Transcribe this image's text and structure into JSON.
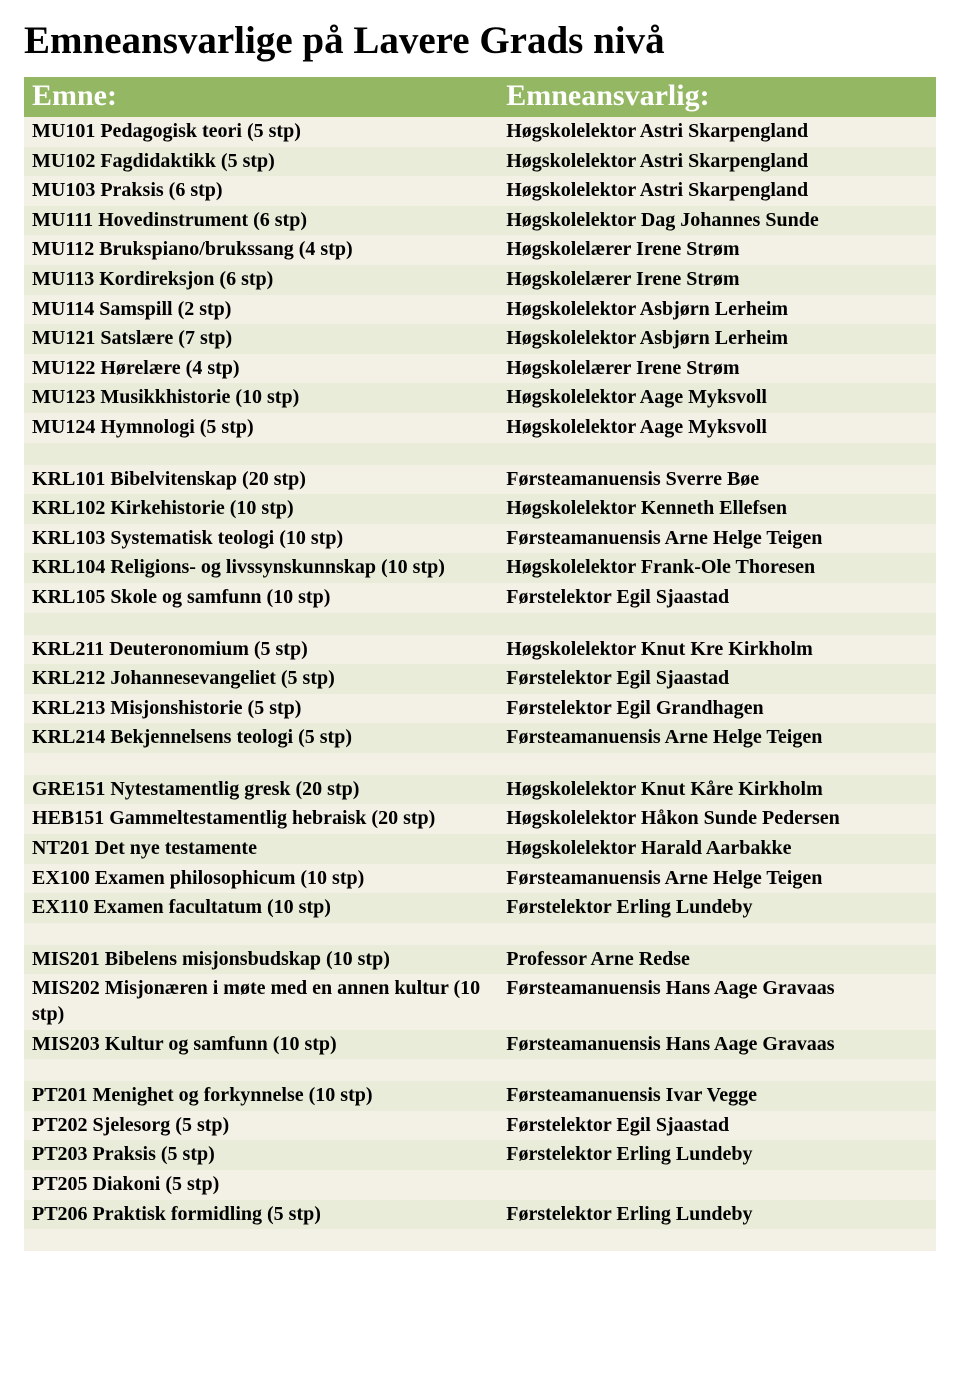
{
  "title": "Emneansvarlige på Lavere Grads nivå",
  "header": {
    "col1": "Emne:",
    "col2": "Emneansvarlig:"
  },
  "colors": {
    "header_bg": "#93b762",
    "header_fg": "#ffffff",
    "row_odd": "#f3f1e6",
    "row_even": "#e8ecd9"
  },
  "rows": [
    {
      "c1": "MU101 Pedagogisk teori (5 stp)",
      "c2": "Høgskolelektor Astri Skarpengland"
    },
    {
      "c1": "MU102 Fagdidaktikk (5 stp)",
      "c2": "Høgskolelektor Astri Skarpengland"
    },
    {
      "c1": "MU103 Praksis (6 stp)",
      "c2": "Høgskolelektor Astri Skarpengland"
    },
    {
      "c1": "MU111 Hovedinstrument (6 stp)",
      "c2": "Høgskolelektor Dag Johannes Sunde"
    },
    {
      "c1": "MU112 Brukspiano/brukssang (4 stp)",
      "c2": "Høgskolelærer Irene Strøm"
    },
    {
      "c1": "MU113 Kordireksjon (6 stp)",
      "c2": "Høgskolelærer Irene Strøm"
    },
    {
      "c1": "MU114 Samspill (2 stp)",
      "c2": "Høgskolelektor Asbjørn Lerheim"
    },
    {
      "c1": "MU121 Satslære (7 stp)",
      "c2": "Høgskolelektor Asbjørn Lerheim"
    },
    {
      "c1": "MU122 Hørelære (4 stp)",
      "c2": "Høgskolelærer Irene Strøm"
    },
    {
      "c1": "MU123 Musikkhistorie (10 stp)",
      "c2": "Høgskolelektor Aage Myksvoll"
    },
    {
      "c1": "MU124 Hymnologi (5 stp)",
      "c2": "Høgskolelektor Aage Myksvoll"
    },
    {
      "blank": true
    },
    {
      "c1": "KRL101 Bibelvitenskap (20 stp)",
      "c2": "Førsteamanuensis Sverre Bøe"
    },
    {
      "c1": "KRL102 Kirkehistorie (10 stp)",
      "c2": "Høgskolelektor Kenneth Ellefsen"
    },
    {
      "c1": "KRL103 Systematisk teologi (10 stp)",
      "c2": "Førsteamanuensis Arne Helge Teigen"
    },
    {
      "c1": "KRL104 Religions- og livssynskunnskap (10 stp)",
      "c2": "Høgskolelektor Frank-Ole Thoresen"
    },
    {
      "c1": "KRL105 Skole og samfunn (10 stp)",
      "c2": "Førstelektor Egil Sjaastad"
    },
    {
      "blank": true
    },
    {
      "c1": "KRL211 Deuteronomium (5 stp)",
      "c2": "Høgskolelektor Knut Kre Kirkholm"
    },
    {
      "c1": "KRL212 Johannesevangeliet (5 stp)",
      "c2": "Førstelektor Egil Sjaastad"
    },
    {
      "c1": "KRL213 Misjonshistorie (5 stp)",
      "c2": "Førstelektor Egil Grandhagen"
    },
    {
      "c1": "KRL214 Bekjennelsens teologi (5 stp)",
      "c2": "Førsteamanuensis Arne Helge Teigen"
    },
    {
      "blank": true
    },
    {
      "c1": "GRE151 Nytestamentlig gresk (20 stp)",
      "c2": "Høgskolelektor Knut Kåre Kirkholm"
    },
    {
      "c1": "HEB151 Gammeltestamentlig hebraisk (20 stp)",
      "c2": "Høgskolelektor Håkon Sunde Pedersen"
    },
    {
      "c1": "NT201 Det nye testamente",
      "c2": "Høgskolelektor Harald Aarbakke"
    },
    {
      "c1": "EX100 Examen philosophicum (10 stp)",
      "c2": "Førsteamanuensis Arne Helge Teigen"
    },
    {
      "c1": "EX110 Examen facultatum (10 stp)",
      "c2": "Førstelektor Erling Lundeby"
    },
    {
      "blank": true
    },
    {
      "c1": "MIS201 Bibelens misjonsbudskap (10 stp)",
      "c2": "Professor Arne Redse"
    },
    {
      "c1": "MIS202 Misjonæren i møte med en annen kultur (10 stp)",
      "c2": "Førsteamanuensis Hans Aage Gravaas"
    },
    {
      "c1": "MIS203 Kultur og samfunn (10 stp)",
      "c2": "Førsteamanuensis Hans Aage Gravaas"
    },
    {
      "blank": true
    },
    {
      "c1": "PT201 Menighet og forkynnelse (10 stp)",
      "c2": "Førsteamanuensis Ivar Vegge"
    },
    {
      "c1": "PT202 Sjelesorg (5 stp)",
      "c2": "Førstelektor Egil Sjaastad"
    },
    {
      "c1": "PT203 Praksis (5 stp)",
      "c2": "Førstelektor Erling Lundeby"
    },
    {
      "c1": "PT205 Diakoni (5 stp)",
      "c2": ""
    },
    {
      "c1": "PT206 Praktisk formidling (5 stp)",
      "c2": "Førstelektor Erling Lundeby"
    },
    {
      "blank": true
    }
  ]
}
